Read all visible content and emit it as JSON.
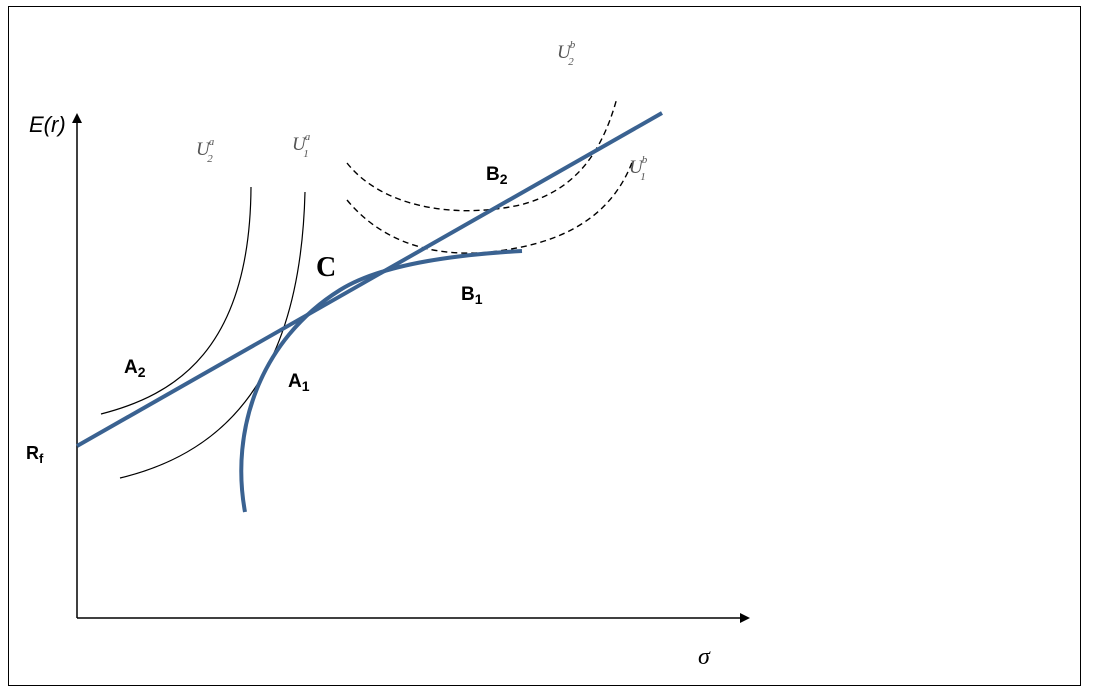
{
  "axes": {
    "y_label": "E(r)",
    "x_label": "σ",
    "rf_label_main": "R",
    "rf_label_sub": "f"
  },
  "curves": {
    "u2a": {
      "main": "U",
      "sub": "2",
      "sup": "a"
    },
    "u1a": {
      "main": "U",
      "sub": "1",
      "sup": "a"
    },
    "u2b": {
      "main": "U",
      "sub": "2",
      "sup": "b"
    },
    "u1b": {
      "main": "U",
      "sub": "1",
      "sup": "b"
    }
  },
  "points": {
    "c": "C",
    "a2": {
      "main": "A",
      "sub": "2"
    },
    "a1": {
      "main": "A",
      "sub": "1"
    },
    "b2": {
      "main": "B",
      "sub": "2"
    },
    "b1": {
      "main": "B",
      "sub": "1"
    }
  },
  "colors": {
    "frontier": "#3a6291",
    "ink": "#000000",
    "faint_label": "#555555"
  }
}
